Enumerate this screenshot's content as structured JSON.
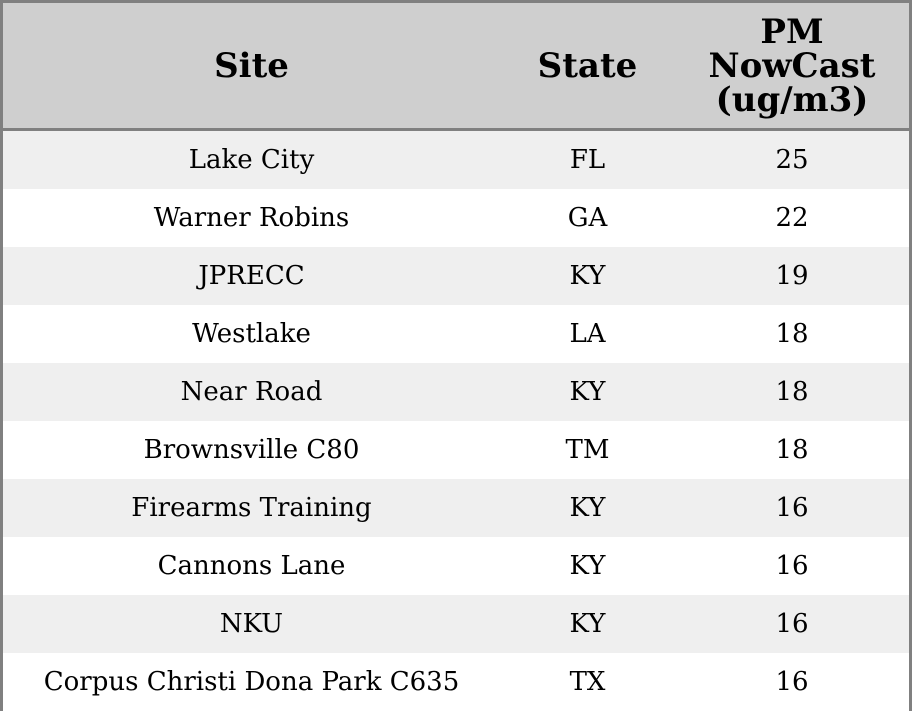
{
  "chart_data": {
    "type": "table",
    "columns": [
      "Site",
      "State",
      "PM NowCast (ug/m3)"
    ],
    "header_lines": {
      "site": [
        "Site"
      ],
      "state": [
        "State"
      ],
      "pm": [
        "PM",
        "NowCast",
        "(ug/m3)"
      ]
    },
    "rows": [
      {
        "site": "Lake City",
        "state": "FL",
        "pm": 25
      },
      {
        "site": "Warner Robins",
        "state": "GA",
        "pm": 22
      },
      {
        "site": "JPRECC",
        "state": "KY",
        "pm": 19
      },
      {
        "site": "Westlake",
        "state": "LA",
        "pm": 18
      },
      {
        "site": "Near Road",
        "state": "KY",
        "pm": 18
      },
      {
        "site": "Brownsville C80",
        "state": "TM",
        "pm": 18
      },
      {
        "site": "Firearms Training",
        "state": "KY",
        "pm": 16
      },
      {
        "site": "Cannons Lane",
        "state": "KY",
        "pm": 16
      },
      {
        "site": "NKU",
        "state": "KY",
        "pm": 16
      },
      {
        "site": "Corpus Christi Dona Park C635",
        "state": "TX",
        "pm": 16
      }
    ],
    "colors": {
      "header_bg": "#cfcfcf",
      "row_odd_bg": "#efefef",
      "row_even_bg": "#ffffff",
      "border": "#808080"
    }
  }
}
